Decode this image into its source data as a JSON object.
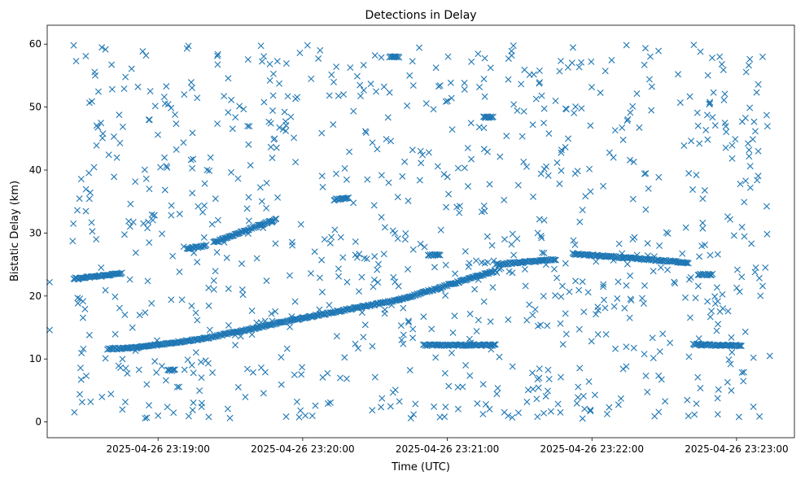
{
  "chart_data": {
    "type": "scatter",
    "title": "Detections in Delay",
    "xlabel": "Time (UTC)",
    "ylabel": "Bistatic Delay (km)",
    "marker": "x",
    "color": "#1f77b4",
    "grid": false,
    "xlim": [
      "2025-04-26 23:18:14",
      "2025-04-26 23:23:24"
    ],
    "ylim": [
      -2.5,
      63
    ],
    "xticks": [
      "2025-04-26 23:19:00",
      "2025-04-26 23:20:00",
      "2025-04-26 23:21:00",
      "2025-04-26 23:22:00",
      "2025-04-26 23:23:00"
    ],
    "yticks": [
      0,
      10,
      20,
      30,
      40,
      50,
      60
    ],
    "tracks": [
      {
        "t_start": "2025-04-26 23:18:25",
        "t_end": "2025-04-26 23:18:45",
        "delay_start": 22.7,
        "delay_end": 23.6
      },
      {
        "t_start": "2025-04-26 23:19:12",
        "t_end": "2025-04-26 23:19:20",
        "delay_start": 27.5,
        "delay_end": 28.0
      },
      {
        "t_start": "2025-04-26 23:19:23",
        "t_end": "2025-04-26 23:19:49",
        "delay_start": 28.5,
        "delay_end": 32.2
      },
      {
        "t_start": "2025-04-26 23:18:39",
        "t_end": "2025-04-26 23:18:51",
        "delay_start": 11.6,
        "delay_end": 11.8
      },
      {
        "t_start": "2025-04-26 23:18:51",
        "t_end": "2025-04-26 23:19:20",
        "delay_start": 11.8,
        "delay_end": 13.3
      },
      {
        "t_start": "2025-04-26 23:19:20",
        "t_end": "2025-04-26 23:20:00",
        "delay_start": 13.3,
        "delay_end": 16.5
      },
      {
        "t_start": "2025-04-26 23:20:00",
        "t_end": "2025-04-26 23:20:40",
        "delay_start": 16.5,
        "delay_end": 19.4
      },
      {
        "t_start": "2025-04-26 23:20:40",
        "t_end": "2025-04-26 23:21:20",
        "delay_start": 19.4,
        "delay_end": 24.0
      },
      {
        "t_start": "2025-04-26 23:21:20",
        "t_end": "2025-04-26 23:21:45",
        "delay_start": 25.0,
        "delay_end": 25.8
      },
      {
        "t_start": "2025-04-26 23:21:52",
        "t_end": "2025-04-26 23:22:40",
        "delay_start": 26.7,
        "delay_end": 25.3
      },
      {
        "t_start": "2025-04-26 23:20:50",
        "t_end": "2025-04-26 23:21:20",
        "delay_start": 12.2,
        "delay_end": 12.2
      },
      {
        "t_start": "2025-04-26 23:22:42",
        "t_end": "2025-04-26 23:23:02",
        "delay_start": 12.3,
        "delay_end": 12.1
      },
      {
        "t_start": "2025-04-26 23:20:52",
        "t_end": "2025-04-26 23:20:57",
        "delay_start": 26.5,
        "delay_end": 26.5
      },
      {
        "t_start": "2025-04-26 23:21:15",
        "t_end": "2025-04-26 23:21:19",
        "delay_start": 48.4,
        "delay_end": 48.4
      },
      {
        "t_start": "2025-04-26 23:19:04",
        "t_end": "2025-04-26 23:19:07",
        "delay_start": 8.2,
        "delay_end": 8.2
      },
      {
        "t_start": "2025-04-26 23:20:13",
        "t_end": "2025-04-26 23:20:19",
        "delay_start": 35.3,
        "delay_end": 35.6
      },
      {
        "t_start": "2025-04-26 23:20:36",
        "t_end": "2025-04-26 23:20:40",
        "delay_start": 58.0,
        "delay_end": 58.0
      },
      {
        "t_start": "2025-04-26 23:22:44",
        "t_end": "2025-04-26 23:22:50",
        "delay_start": 23.4,
        "delay_end": 23.4
      }
    ],
    "sample_points": [
      {
        "t": "2025-04-26 23:18:25",
        "delay": 59.8
      },
      {
        "t": "2025-04-26 23:18:26",
        "delay": 57.3
      },
      {
        "t": "2025-04-26 23:18:30",
        "delay": 58.1
      },
      {
        "t": "2025-04-26 23:18:15",
        "delay": 14.6
      },
      {
        "t": "2025-04-26 23:18:15",
        "delay": 22.2
      },
      {
        "t": "2025-04-26 23:18:29",
        "delay": 11.6
      },
      {
        "t": "2025-04-26 23:18:32",
        "delay": 3.2
      },
      {
        "t": "2025-04-26 23:18:55",
        "delay": 58.2
      },
      {
        "t": "2025-04-26 23:19:00",
        "delay": 1.0
      },
      {
        "t": "2025-04-26 23:19:12",
        "delay": 59.3
      },
      {
        "t": "2025-04-26 23:19:21",
        "delay": 0.8
      },
      {
        "t": "2025-04-26 23:20:02",
        "delay": 59.8
      },
      {
        "t": "2025-04-26 23:20:30",
        "delay": 58.2
      },
      {
        "t": "2025-04-26 23:20:46",
        "delay": 1.2
      },
      {
        "t": "2025-04-26 23:21:10",
        "delay": 57.2
      },
      {
        "t": "2025-04-26 23:21:16",
        "delay": 2.8
      },
      {
        "t": "2025-04-26 23:21:40",
        "delay": 1.4
      },
      {
        "t": "2025-04-26 23:22:26",
        "delay": 0.9
      },
      {
        "t": "2025-04-26 23:22:45",
        "delay": 58.8
      },
      {
        "t": "2025-04-26 23:22:53",
        "delay": 58.0
      },
      {
        "t": "2025-04-26 23:23:01",
        "delay": 0.8
      },
      {
        "t": "2025-04-26 23:23:09",
        "delay": 53.6
      },
      {
        "t": "2025-04-26 23:23:09",
        "delay": 43.0
      },
      {
        "t": "2025-04-26 23:23:08",
        "delay": 24.5
      },
      {
        "t": "2025-04-26 23:23:07",
        "delay": 10.2
      }
    ]
  }
}
